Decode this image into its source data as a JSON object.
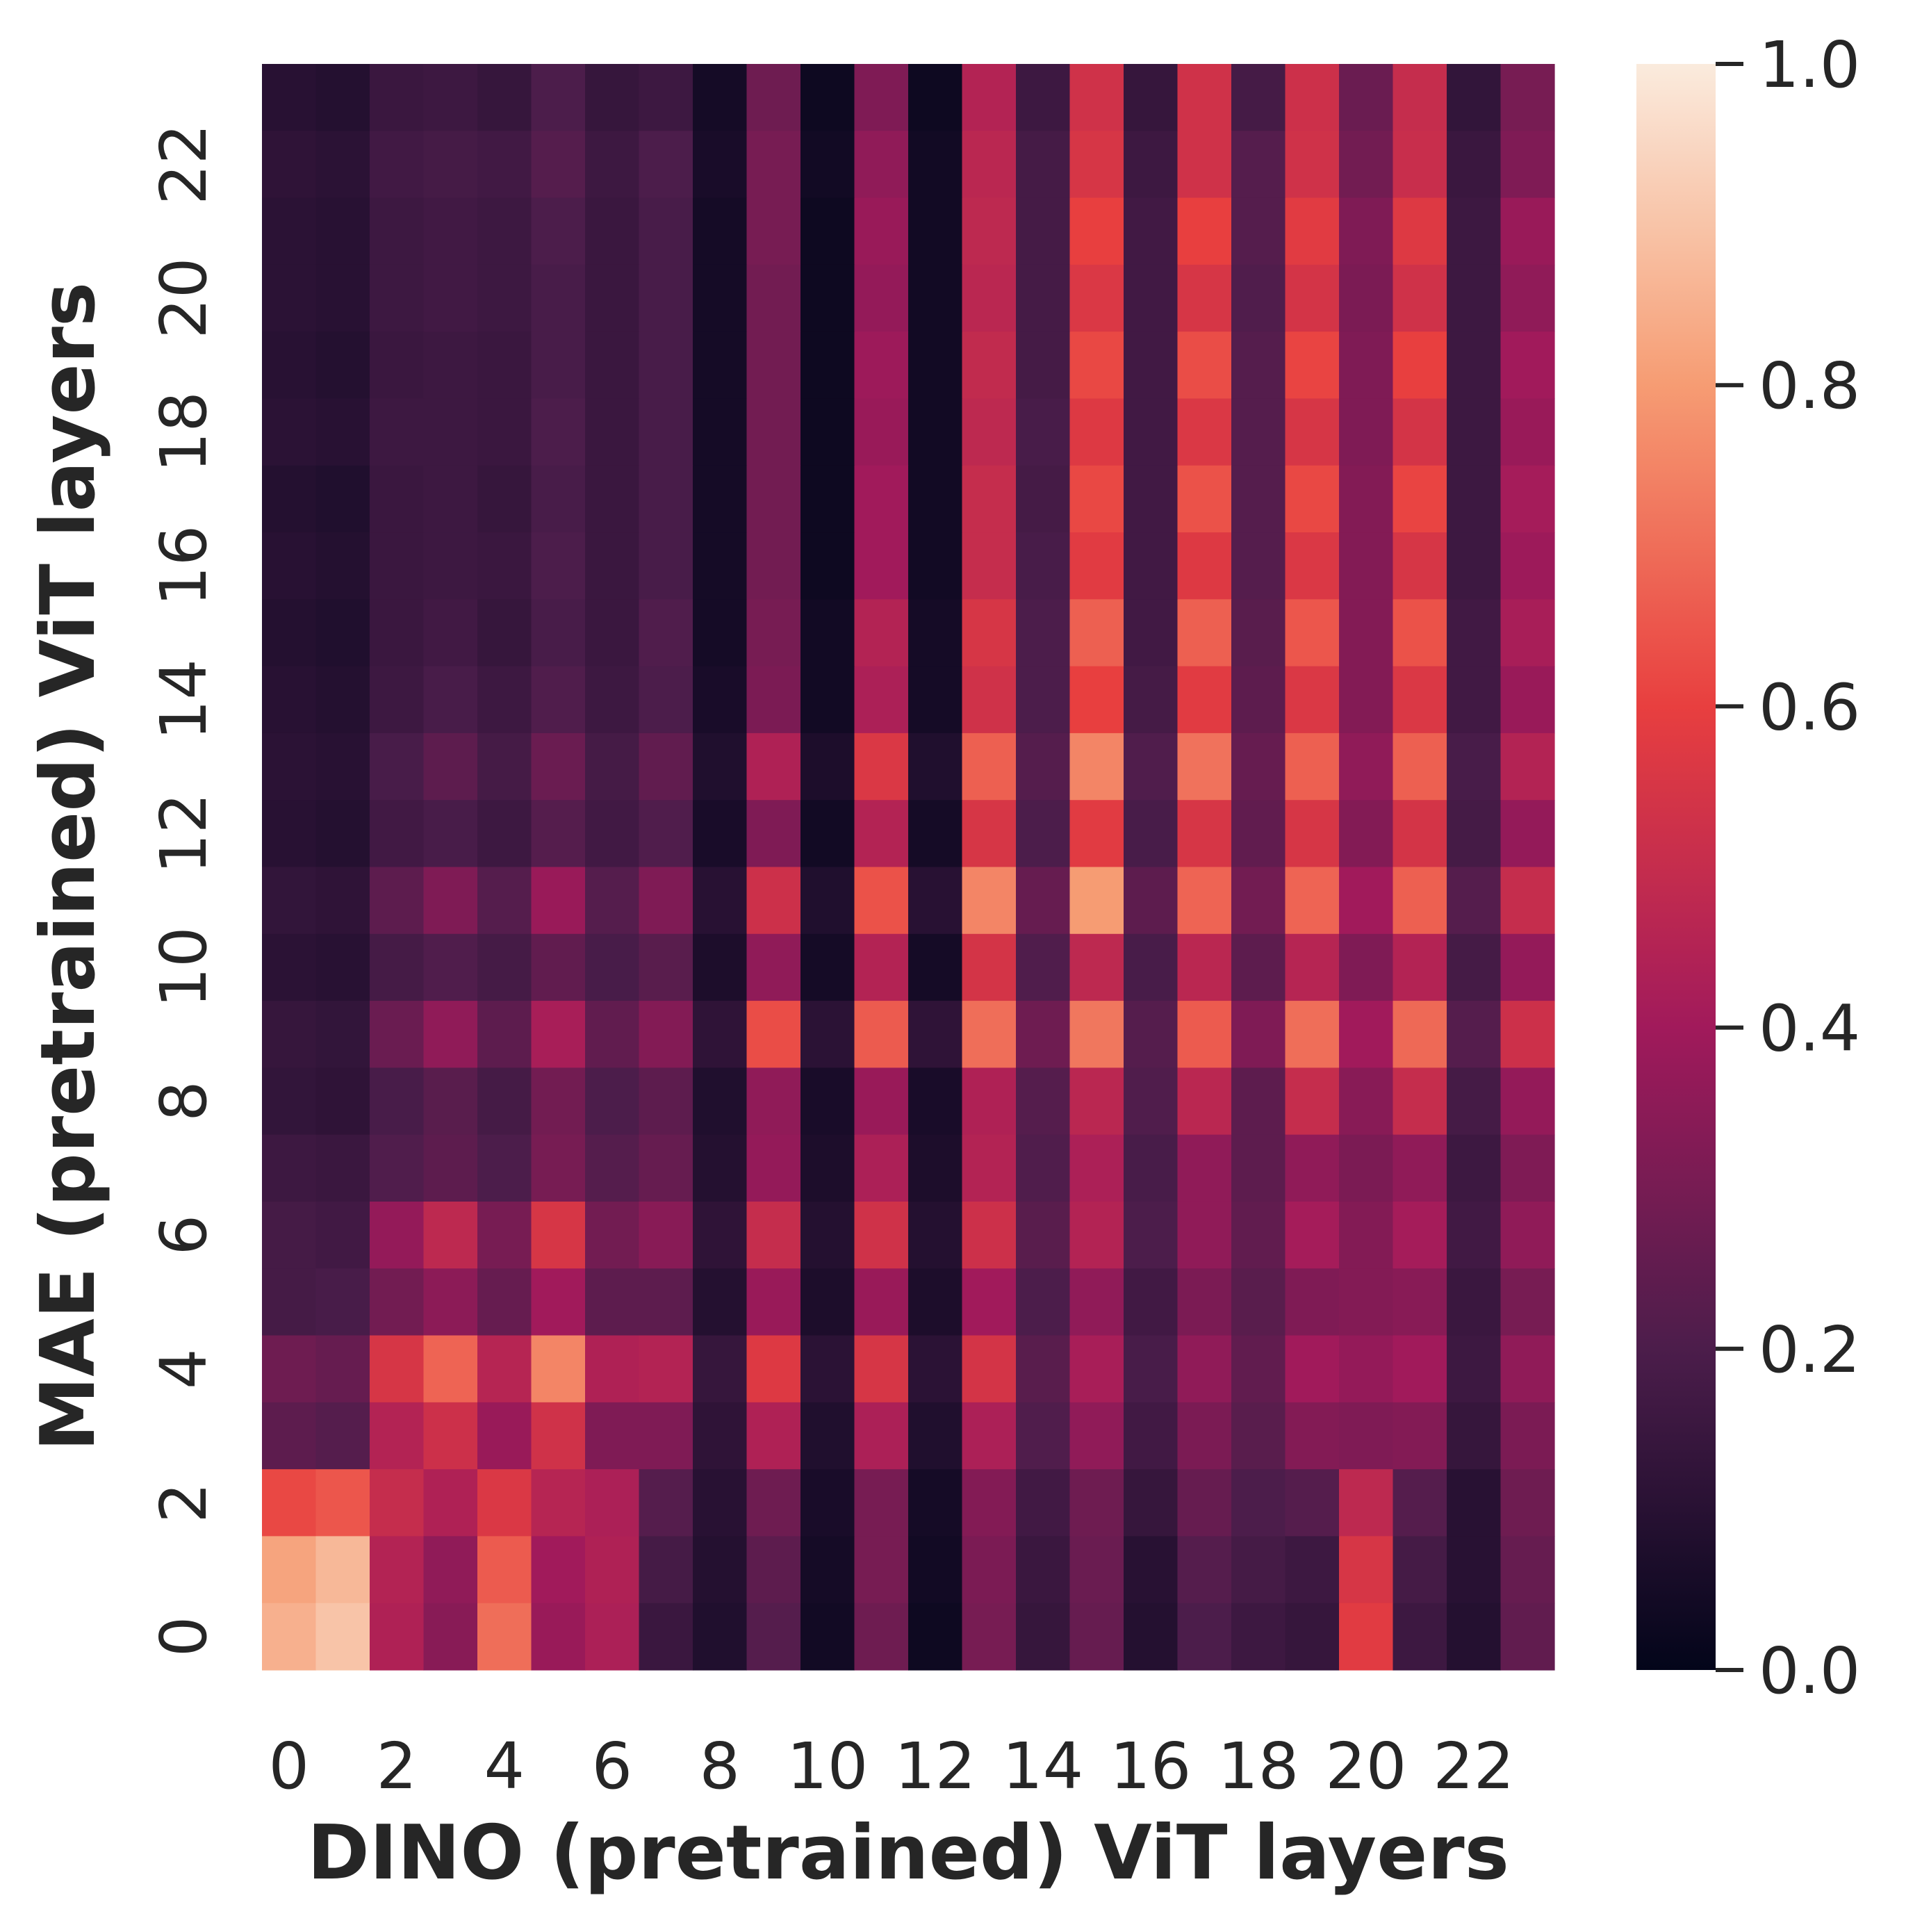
{
  "chart_data": {
    "type": "heatmap",
    "title": "",
    "xlabel": "DINO (pretrained) ViT layers",
    "ylabel": "MAE (pretrained) ViT layers",
    "x_tick_labels": [
      "0",
      "2",
      "4",
      "6",
      "8",
      "10",
      "12",
      "14",
      "16",
      "18",
      "20",
      "22"
    ],
    "y_tick_labels": [
      "0",
      "2",
      "4",
      "6",
      "8",
      "10",
      "12",
      "14",
      "16",
      "18",
      "20",
      "22"
    ],
    "x_range": [
      0,
      23
    ],
    "y_range": [
      0,
      23
    ],
    "colorbar": {
      "min": 0.0,
      "max": 1.0,
      "tick_labels": [
        "0.0",
        "0.2",
        "0.4",
        "0.6",
        "0.8",
        "1.0"
      ],
      "tick_values": [
        0.0,
        0.2,
        0.4,
        0.6,
        0.8,
        1.0
      ],
      "colormap": "rocket",
      "color_stops": [
        "#03051a",
        "#4c1d4b",
        "#a11a5b",
        "#e83f3f",
        "#f69c73",
        "#faebdd"
      ]
    },
    "rows_top_to_bottom_mae_layer_23_to_0": [
      [
        0.1,
        0.09,
        0.15,
        0.16,
        0.14,
        0.2,
        0.14,
        0.16,
        0.05,
        0.28,
        0.03,
        0.32,
        0.03,
        0.45,
        0.16,
        0.53,
        0.14,
        0.53,
        0.18,
        0.52,
        0.27,
        0.5,
        0.13,
        0.3
      ],
      [
        0.12,
        0.11,
        0.17,
        0.18,
        0.17,
        0.22,
        0.16,
        0.2,
        0.06,
        0.3,
        0.04,
        0.36,
        0.04,
        0.47,
        0.18,
        0.55,
        0.16,
        0.53,
        0.22,
        0.53,
        0.29,
        0.51,
        0.15,
        0.32
      ],
      [
        0.11,
        0.1,
        0.16,
        0.17,
        0.16,
        0.2,
        0.15,
        0.19,
        0.05,
        0.3,
        0.03,
        0.38,
        0.04,
        0.48,
        0.18,
        0.6,
        0.17,
        0.6,
        0.22,
        0.58,
        0.32,
        0.57,
        0.16,
        0.38
      ],
      [
        0.11,
        0.1,
        0.16,
        0.17,
        0.16,
        0.19,
        0.15,
        0.19,
        0.05,
        0.29,
        0.03,
        0.37,
        0.04,
        0.47,
        0.18,
        0.56,
        0.17,
        0.55,
        0.21,
        0.54,
        0.31,
        0.53,
        0.16,
        0.36
      ],
      [
        0.1,
        0.09,
        0.15,
        0.16,
        0.15,
        0.19,
        0.15,
        0.19,
        0.05,
        0.29,
        0.03,
        0.39,
        0.04,
        0.49,
        0.18,
        0.62,
        0.17,
        0.63,
        0.22,
        0.61,
        0.32,
        0.6,
        0.16,
        0.4
      ],
      [
        0.11,
        0.1,
        0.16,
        0.16,
        0.15,
        0.2,
        0.15,
        0.19,
        0.05,
        0.29,
        0.03,
        0.38,
        0.04,
        0.48,
        0.19,
        0.57,
        0.17,
        0.56,
        0.22,
        0.55,
        0.32,
        0.54,
        0.16,
        0.38
      ],
      [
        0.09,
        0.08,
        0.15,
        0.16,
        0.14,
        0.19,
        0.15,
        0.19,
        0.05,
        0.29,
        0.03,
        0.4,
        0.04,
        0.5,
        0.18,
        0.62,
        0.17,
        0.64,
        0.22,
        0.62,
        0.33,
        0.61,
        0.16,
        0.41
      ],
      [
        0.1,
        0.09,
        0.15,
        0.16,
        0.15,
        0.2,
        0.15,
        0.19,
        0.05,
        0.29,
        0.03,
        0.4,
        0.04,
        0.5,
        0.19,
        0.58,
        0.17,
        0.57,
        0.22,
        0.56,
        0.33,
        0.55,
        0.16,
        0.39
      ],
      [
        0.09,
        0.08,
        0.15,
        0.17,
        0.14,
        0.19,
        0.15,
        0.21,
        0.05,
        0.3,
        0.04,
        0.45,
        0.05,
        0.55,
        0.2,
        0.67,
        0.17,
        0.67,
        0.23,
        0.65,
        0.33,
        0.64,
        0.17,
        0.42
      ],
      [
        0.1,
        0.09,
        0.16,
        0.19,
        0.16,
        0.21,
        0.16,
        0.2,
        0.06,
        0.31,
        0.04,
        0.43,
        0.05,
        0.53,
        0.2,
        0.6,
        0.18,
        0.58,
        0.24,
        0.56,
        0.33,
        0.56,
        0.17,
        0.38
      ],
      [
        0.11,
        0.1,
        0.19,
        0.24,
        0.18,
        0.27,
        0.18,
        0.25,
        0.08,
        0.44,
        0.07,
        0.56,
        0.08,
        0.67,
        0.22,
        0.75,
        0.21,
        0.71,
        0.26,
        0.67,
        0.36,
        0.67,
        0.19,
        0.45
      ],
      [
        0.1,
        0.09,
        0.17,
        0.19,
        0.16,
        0.22,
        0.17,
        0.21,
        0.06,
        0.32,
        0.04,
        0.45,
        0.05,
        0.55,
        0.2,
        0.58,
        0.19,
        0.55,
        0.25,
        0.55,
        0.33,
        0.54,
        0.18,
        0.37
      ],
      [
        0.13,
        0.12,
        0.24,
        0.32,
        0.22,
        0.38,
        0.22,
        0.32,
        0.1,
        0.52,
        0.08,
        0.64,
        0.1,
        0.75,
        0.26,
        0.8,
        0.24,
        0.68,
        0.29,
        0.68,
        0.4,
        0.67,
        0.22,
        0.5
      ],
      [
        0.11,
        0.1,
        0.18,
        0.21,
        0.18,
        0.25,
        0.19,
        0.23,
        0.07,
        0.36,
        0.05,
        0.45,
        0.05,
        0.54,
        0.21,
        0.48,
        0.19,
        0.47,
        0.24,
        0.46,
        0.32,
        0.45,
        0.18,
        0.37
      ],
      [
        0.14,
        0.13,
        0.27,
        0.36,
        0.24,
        0.42,
        0.25,
        0.33,
        0.12,
        0.63,
        0.11,
        0.66,
        0.12,
        0.7,
        0.28,
        0.72,
        0.22,
        0.66,
        0.32,
        0.7,
        0.4,
        0.69,
        0.22,
        0.52
      ],
      [
        0.13,
        0.12,
        0.19,
        0.23,
        0.18,
        0.29,
        0.2,
        0.24,
        0.08,
        0.36,
        0.06,
        0.38,
        0.06,
        0.44,
        0.22,
        0.47,
        0.21,
        0.47,
        0.24,
        0.5,
        0.34,
        0.5,
        0.18,
        0.37
      ],
      [
        0.16,
        0.15,
        0.21,
        0.24,
        0.2,
        0.3,
        0.22,
        0.26,
        0.09,
        0.37,
        0.07,
        0.43,
        0.07,
        0.45,
        0.21,
        0.43,
        0.19,
        0.36,
        0.24,
        0.36,
        0.31,
        0.36,
        0.16,
        0.32
      ],
      [
        0.18,
        0.17,
        0.37,
        0.48,
        0.3,
        0.55,
        0.29,
        0.34,
        0.12,
        0.5,
        0.09,
        0.53,
        0.09,
        0.52,
        0.23,
        0.45,
        0.2,
        0.36,
        0.25,
        0.41,
        0.33,
        0.41,
        0.17,
        0.36
      ],
      [
        0.18,
        0.19,
        0.29,
        0.35,
        0.26,
        0.4,
        0.24,
        0.24,
        0.09,
        0.38,
        0.07,
        0.38,
        0.07,
        0.4,
        0.2,
        0.36,
        0.17,
        0.31,
        0.23,
        0.32,
        0.33,
        0.34,
        0.15,
        0.3
      ],
      [
        0.28,
        0.26,
        0.55,
        0.68,
        0.46,
        0.75,
        0.44,
        0.45,
        0.14,
        0.57,
        0.11,
        0.55,
        0.11,
        0.54,
        0.23,
        0.42,
        0.19,
        0.36,
        0.25,
        0.4,
        0.37,
        0.4,
        0.16,
        0.36
      ],
      [
        0.24,
        0.22,
        0.45,
        0.52,
        0.38,
        0.53,
        0.32,
        0.32,
        0.12,
        0.44,
        0.08,
        0.43,
        0.08,
        0.43,
        0.21,
        0.36,
        0.17,
        0.31,
        0.23,
        0.33,
        0.32,
        0.33,
        0.14,
        0.31
      ],
      [
        0.62,
        0.65,
        0.5,
        0.44,
        0.56,
        0.46,
        0.43,
        0.22,
        0.1,
        0.28,
        0.06,
        0.3,
        0.05,
        0.33,
        0.17,
        0.28,
        0.14,
        0.26,
        0.2,
        0.22,
        0.48,
        0.22,
        0.1,
        0.28
      ],
      [
        0.82,
        0.87,
        0.45,
        0.36,
        0.66,
        0.4,
        0.44,
        0.18,
        0.09,
        0.24,
        0.05,
        0.3,
        0.04,
        0.31,
        0.15,
        0.27,
        0.1,
        0.22,
        0.18,
        0.16,
        0.55,
        0.18,
        0.1,
        0.26
      ],
      [
        0.85,
        0.9,
        0.44,
        0.34,
        0.7,
        0.38,
        0.43,
        0.15,
        0.08,
        0.22,
        0.04,
        0.28,
        0.03,
        0.3,
        0.14,
        0.26,
        0.09,
        0.2,
        0.16,
        0.14,
        0.58,
        0.16,
        0.09,
        0.25
      ]
    ]
  }
}
